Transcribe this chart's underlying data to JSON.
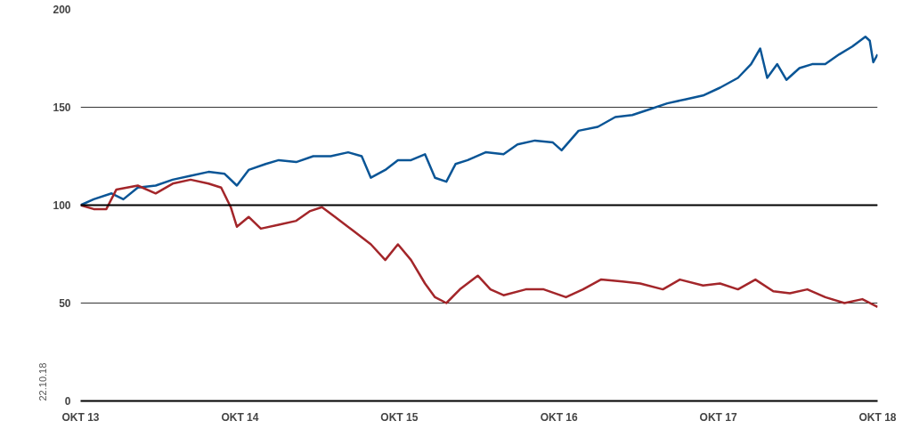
{
  "chart_data": {
    "type": "line",
    "annotations": [
      "22.10.18"
    ],
    "xlim": [
      "2013-10-22",
      "2018-10-22"
    ],
    "xticks": [
      {
        "value": "2013-10-22",
        "label": "OKT 13"
      },
      {
        "value": "2014-10-22",
        "label": "OKT 14"
      },
      {
        "value": "2015-10-22",
        "label": "OKT 15"
      },
      {
        "value": "2016-10-22",
        "label": "OKT 16"
      },
      {
        "value": "2017-10-22",
        "label": "OKT 17"
      },
      {
        "value": "2018-10-22",
        "label": "OKT 18"
      }
    ],
    "ylim": [
      0,
      200
    ],
    "yticks": [
      0,
      50,
      100,
      150,
      200
    ],
    "grid": "y",
    "ref_lines": [
      {
        "axis": "y",
        "value": 100,
        "color": "#000000"
      }
    ],
    "series": [
      {
        "color": "#0a5596",
        "x": [
          "2013-10-22",
          "2013-11-21",
          "2014-01-01",
          "2014-01-28",
          "2014-03-02",
          "2014-04-12",
          "2014-05-21",
          "2014-07-01",
          "2014-08-11",
          "2014-09-17",
          "2014-10-15",
          "2014-11-11",
          "2014-12-20",
          "2015-01-19",
          "2015-02-28",
          "2015-04-08",
          "2015-05-18",
          "2015-06-27",
          "2015-07-28",
          "2015-08-18",
          "2015-09-20",
          "2015-10-19",
          "2015-11-18",
          "2015-12-20",
          "2016-01-12",
          "2016-02-07",
          "2016-02-28",
          "2016-03-27",
          "2016-05-07",
          "2016-06-17",
          "2016-07-19",
          "2016-08-28",
          "2016-10-08",
          "2016-10-28",
          "2016-12-06",
          "2017-01-19",
          "2017-02-28",
          "2017-04-08",
          "2017-05-18",
          "2017-06-27",
          "2017-08-07",
          "2017-09-17",
          "2017-10-26",
          "2017-12-06",
          "2018-01-05",
          "2018-01-26",
          "2018-02-11",
          "2018-03-06",
          "2018-03-27",
          "2018-04-26",
          "2018-05-25",
          "2018-06-24",
          "2018-07-26",
          "2018-08-25",
          "2018-09-24",
          "2018-10-04",
          "2018-10-12",
          "2018-10-22"
        ],
        "values": [
          100,
          103,
          106,
          103,
          109,
          110,
          113,
          115,
          117,
          116,
          110,
          118,
          121,
          123,
          122,
          125,
          125,
          127,
          125,
          114,
          118,
          123,
          123,
          126,
          114,
          112,
          121,
          123,
          127,
          126,
          131,
          133,
          132,
          128,
          138,
          140,
          145,
          146,
          149,
          152,
          154,
          156,
          160,
          165,
          172,
          180,
          165,
          172,
          164,
          170,
          172,
          172,
          177,
          181,
          186,
          184,
          173,
          177
        ]
      },
      {
        "color": "#a3262a",
        "x": [
          "2013-10-22",
          "2013-11-21",
          "2013-12-20",
          "2014-01-12",
          "2014-03-02",
          "2014-04-12",
          "2014-05-21",
          "2014-07-01",
          "2014-08-11",
          "2014-09-09",
          "2014-10-01",
          "2014-10-15",
          "2014-11-11",
          "2014-12-09",
          "2015-01-19",
          "2015-02-28",
          "2015-04-01",
          "2015-04-28",
          "2015-05-28",
          "2015-07-08",
          "2015-08-18",
          "2015-09-20",
          "2015-10-19",
          "2015-11-18",
          "2015-12-20",
          "2016-01-12",
          "2016-02-07",
          "2016-03-09",
          "2016-04-19",
          "2016-05-18",
          "2016-06-17",
          "2016-08-07",
          "2016-09-17",
          "2016-11-07",
          "2016-12-16",
          "2017-01-26",
          "2017-03-16",
          "2017-04-26",
          "2017-06-17",
          "2017-07-26",
          "2017-09-17",
          "2017-10-26",
          "2017-12-06",
          "2018-01-15",
          "2018-02-25",
          "2018-04-04",
          "2018-05-14",
          "2018-06-24",
          "2018-08-07",
          "2018-09-17",
          "2018-10-22"
        ],
        "values": [
          100,
          98,
          98,
          108,
          110,
          106,
          111,
          113,
          111,
          109,
          99,
          89,
          94,
          88,
          90,
          92,
          97,
          99,
          94,
          87,
          80,
          72,
          80,
          72,
          60,
          53,
          50,
          57,
          64,
          57,
          54,
          57,
          57,
          53,
          57,
          62,
          61,
          60,
          57,
          62,
          59,
          60,
          57,
          62,
          56,
          55,
          57,
          53,
          50,
          52,
          48
        ]
      }
    ]
  }
}
